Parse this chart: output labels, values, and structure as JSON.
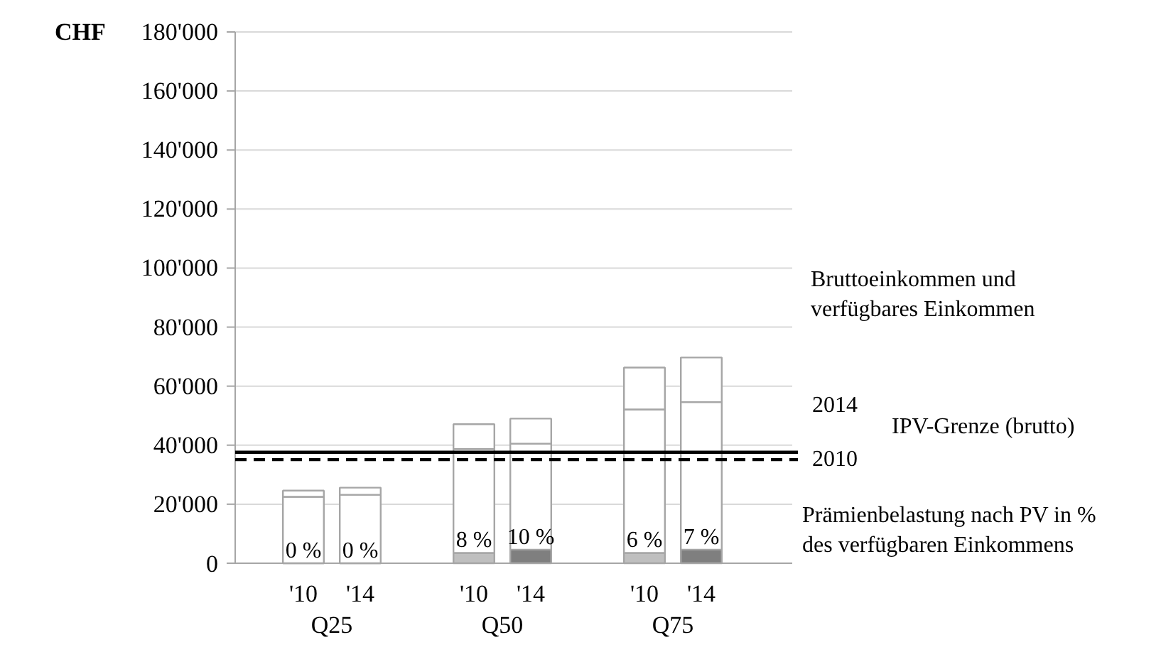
{
  "chart_data": {
    "type": "bar",
    "stacked": true,
    "ylabel": "CHF",
    "categories": [
      "'10",
      "'14",
      null,
      "'10",
      "'14",
      null,
      "'10",
      "'14"
    ],
    "series": [
      {
        "colors": [
          "#bfbfbf",
          "#7f7f7f",
          null,
          "#bfbfbf",
          "#7f7f7f",
          null,
          "#bfbfbf",
          "#7f7f7f"
        ],
        "values": [
          0,
          0,
          null,
          3500,
          4600,
          null,
          3500,
          4600
        ]
      },
      {
        "color": "#ffffff",
        "values": [
          22500,
          23200,
          null,
          35200,
          35900,
          null,
          48600,
          50000
        ]
      },
      {
        "color": "#ffffff",
        "values": [
          2100,
          2400,
          null,
          8400,
          8500,
          null,
          14200,
          15100
        ]
      }
    ],
    "ylim": [
      0,
      180000
    ],
    "yticks": [
      {
        "value": 0,
        "label": "0"
      },
      {
        "value": 20000,
        "label": "20'000"
      },
      {
        "value": 40000,
        "label": "40'000"
      },
      {
        "value": 60000,
        "label": "60'000"
      },
      {
        "value": 80000,
        "label": "80'000"
      },
      {
        "value": 100000,
        "label": "100'000"
      },
      {
        "value": 120000,
        "label": "120'000"
      },
      {
        "value": 140000,
        "label": "140'000"
      },
      {
        "value": 160000,
        "label": "160'000"
      },
      {
        "value": 180000,
        "label": "180'000"
      }
    ],
    "ref_lines": [
      {
        "axis": "y",
        "value": 37600,
        "line_style": "solid",
        "color": "#000000"
      },
      {
        "axis": "y",
        "value": 35100,
        "line_style": "dashed",
        "color": "#000000"
      }
    ],
    "annotations": [
      "Bruttoeinkommen  und\nverfügbares Einkommen",
      "2014",
      "IPV-Grenze (brutto)",
      "2010",
      "Prämienbelastung  nach PV in %\ndes verfügbaren Einkommens",
      "Q25",
      "Q50",
      "Q75",
      "0 %",
      "0 %",
      "8 %",
      "10 %",
      "6 %",
      "7 %"
    ],
    "grid": "y"
  }
}
